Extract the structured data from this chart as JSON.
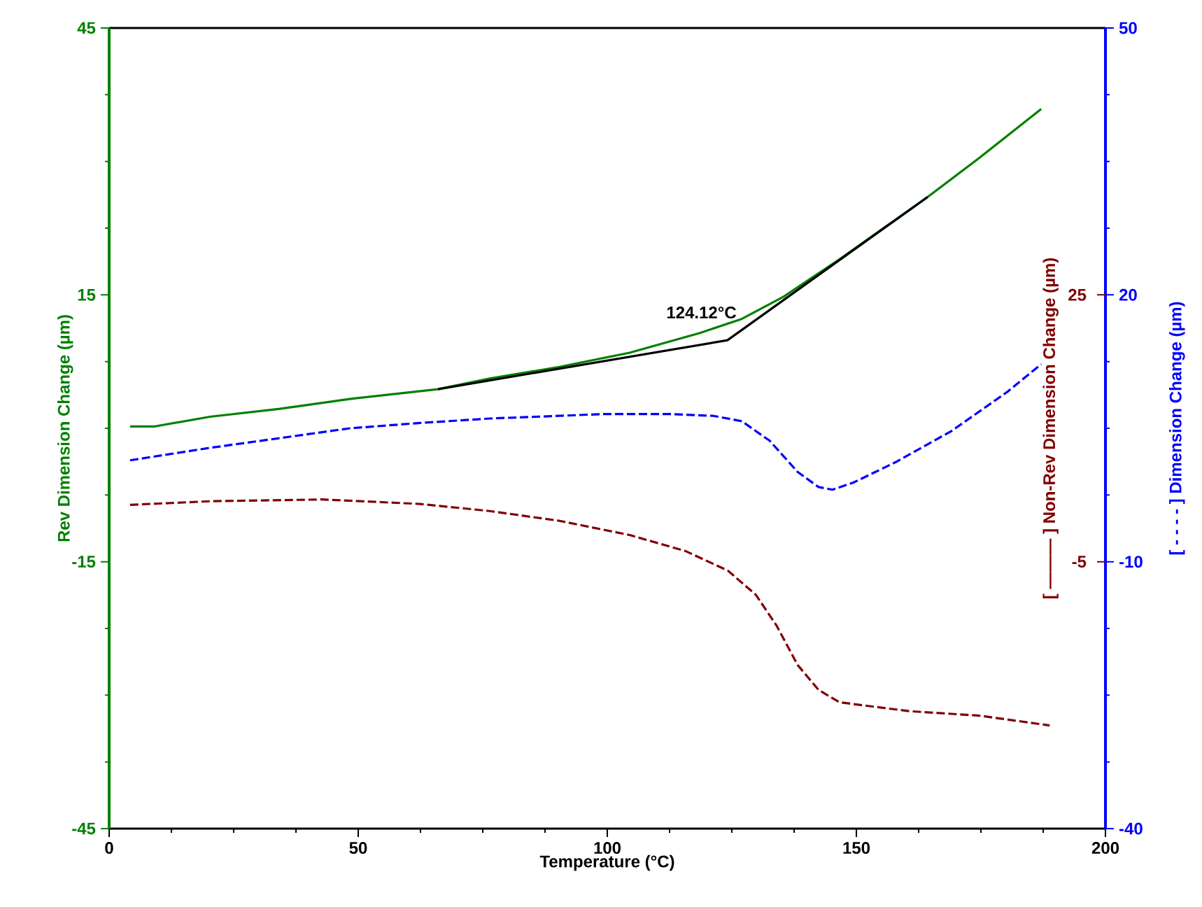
{
  "chart_data": {
    "type": "line",
    "xlabel": "Temperature (°C)",
    "ylabel": "Rev Dimension Change (µm)",
    "y2label": "[ - - - - ] Dimension Change (µm)",
    "y3label": "[ ——— ] Non-Rev Dimension Change (µm)",
    "xlim": [
      0,
      200
    ],
    "xticks": [
      0,
      50,
      100,
      150,
      200
    ],
    "ylim": [
      -45,
      45
    ],
    "yticks": [
      -45,
      -15,
      15,
      45
    ],
    "y2lim": [
      -40,
      50
    ],
    "y2ticks": [
      -40,
      -10,
      20,
      50
    ],
    "y3lim": [
      -35,
      55
    ],
    "y3ticks": [
      -5,
      25
    ],
    "series": [
      {
        "color": "#008000",
        "axis": "y",
        "line_style": "solid",
        "x": [
          4.2,
          9.0,
          20.2,
          34.3,
          48.3,
          66.0,
          76.4,
          90.4,
          104.5,
          118.5,
          127.0,
          135.4,
          146.6,
          164.3,
          174.7,
          187.1
        ],
        "values": [
          0.2,
          0.2,
          1.3,
          2.2,
          3.3,
          4.4,
          5.6,
          6.9,
          8.5,
          10.7,
          12.3,
          14.8,
          19.0,
          26.0,
          30.4,
          35.9
        ]
      },
      {
        "color": "#000000",
        "axis": "y",
        "line_style": "solid",
        "x": [
          66.0,
          124.12,
          164.3
        ],
        "values": [
          4.4,
          9.9,
          26.0
        ]
      },
      {
        "color": "#0000ff",
        "axis": "y2",
        "line_style": "dashed",
        "x": [
          4.2,
          20.2,
          34.3,
          48.3,
          62.4,
          76.4,
          90.4,
          98.9,
          112.9,
          121.3,
          127.0,
          132.6,
          138.2,
          142.4,
          145.2,
          149.4,
          157.9,
          169.1,
          180.3,
          187.1
        ],
        "values": [
          1.4,
          2.8,
          3.9,
          5.0,
          5.6,
          6.1,
          6.4,
          6.6,
          6.6,
          6.4,
          5.8,
          3.6,
          0.1,
          -1.6,
          -1.9,
          -1.1,
          1.2,
          4.7,
          9.1,
          12.2
        ]
      },
      {
        "color": "#800000",
        "axis": "y3",
        "line_style": "dashed",
        "x": [
          4.2,
          20.2,
          42.7,
          62.4,
          76.4,
          90.4,
          104.5,
          115.7,
          124.2,
          129.8,
          134.0,
          138.2,
          142.4,
          146.6,
          160.7,
          174.7,
          188.8
        ],
        "values": [
          1.4,
          1.8,
          2.0,
          1.5,
          0.7,
          -0.4,
          -2.0,
          -3.8,
          -6.0,
          -8.7,
          -12.2,
          -16.6,
          -19.4,
          -20.8,
          -21.8,
          -22.3,
          -23.4
        ]
      }
    ],
    "annotations": [
      {
        "text": "124.12°C",
        "x": 124.12,
        "y": 9.9
      }
    ]
  }
}
